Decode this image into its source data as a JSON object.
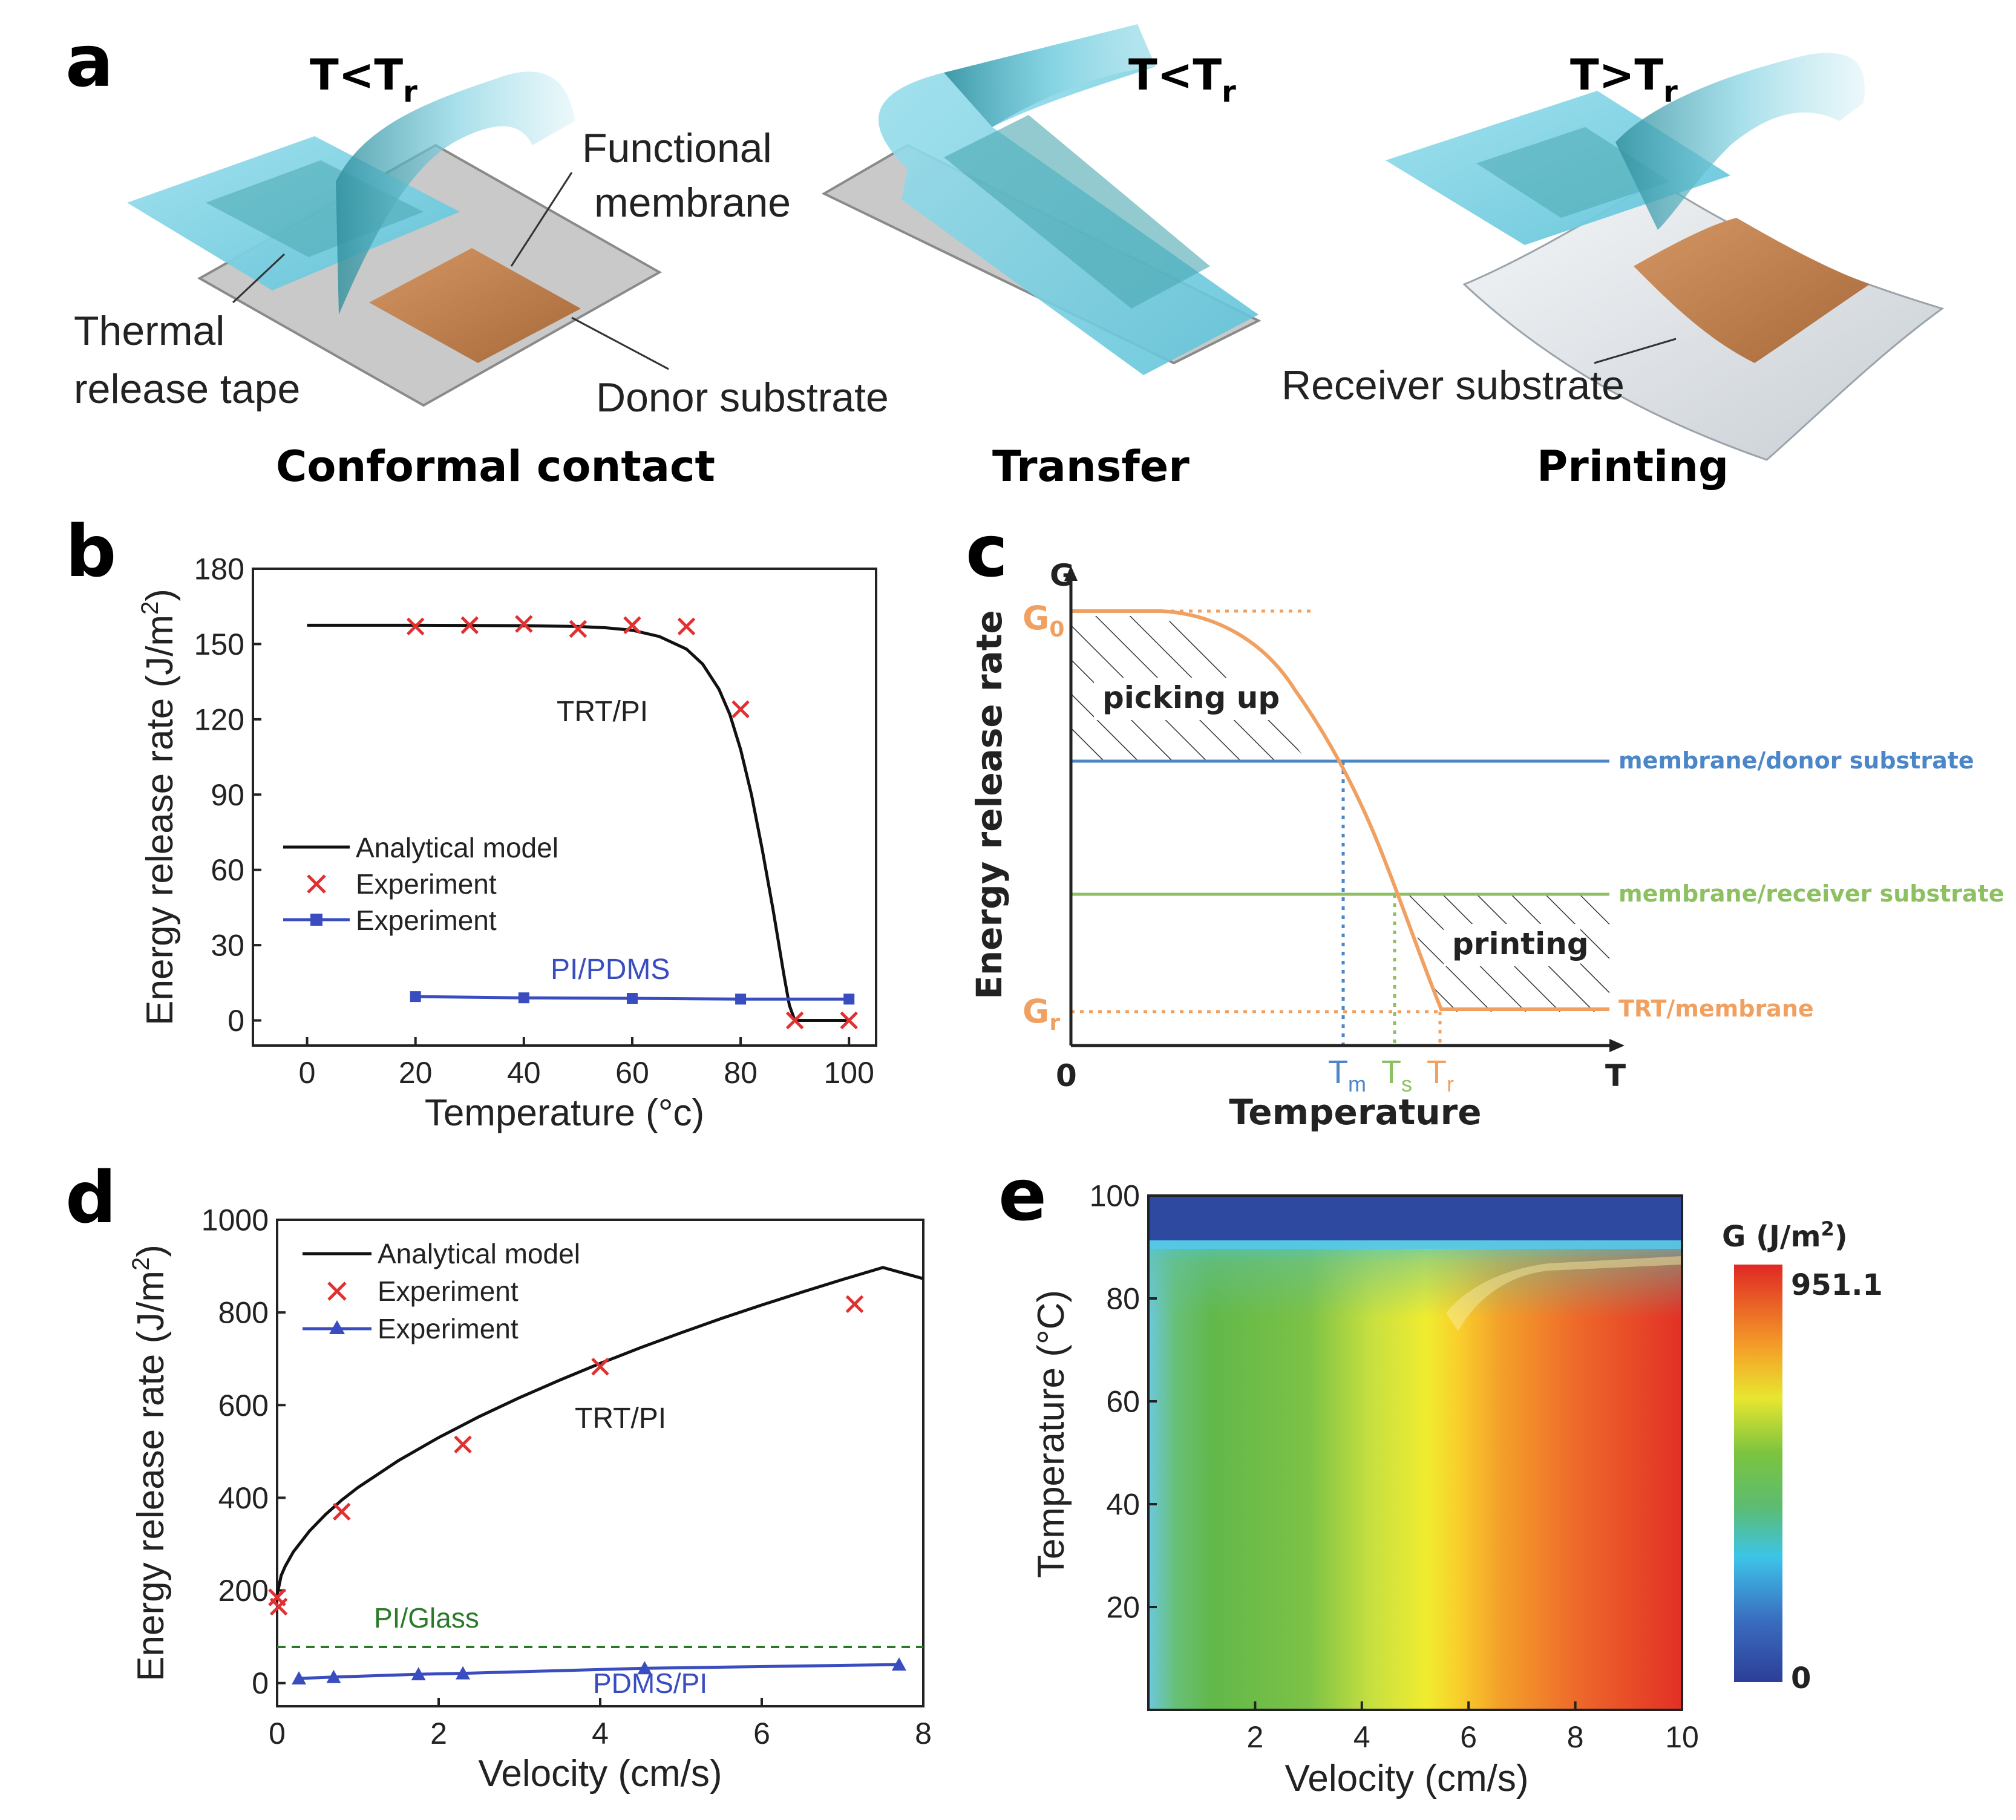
{
  "panel_labels": {
    "a": "a",
    "b": "b",
    "c": "c",
    "d": "d",
    "e": "e"
  },
  "panel_a": {
    "stages": [
      {
        "temp": "T<T",
        "temp_sub": "r",
        "caption": "Conformal contact"
      },
      {
        "temp": "T<T",
        "temp_sub": "r",
        "caption": "Transfer"
      },
      {
        "temp": "T>T",
        "temp_sub": "r",
        "caption": "Printing"
      }
    ],
    "labels": {
      "functional_1": "Functional",
      "functional_2": "membrane",
      "thermal_1": "Thermal",
      "thermal_2": "release tape",
      "donor": "Donor substrate",
      "receiver": "Receiver substrate"
    },
    "colors": {
      "tape": "#7fd3e6",
      "tape_dark": "#3a9aa8",
      "membrane": "#c08550",
      "substrate": "#cfcfcf"
    }
  },
  "chart_data": [
    {
      "panel": "b",
      "type": "line",
      "xlabel": "Temperature (°c)",
      "ylabel": "Energy release rate (J/m",
      "ylabel_sup": "2",
      "ylabel_close": ")",
      "xlim": [
        -10,
        105
      ],
      "ylim": [
        -10,
        180
      ],
      "xticks": [
        0,
        20,
        40,
        60,
        80,
        100
      ],
      "yticks": [
        0,
        30,
        60,
        90,
        120,
        150,
        180
      ],
      "legend": [
        "Analytical model",
        "Experiment",
        "Experiment"
      ],
      "annotations": [
        "TRT/PI",
        "PI/PDMS"
      ],
      "series": [
        {
          "name": "Analytical model (TRT/PI)",
          "x": [
            0,
            10,
            20,
            30,
            40,
            50,
            55,
            60,
            65,
            70,
            73,
            76,
            78,
            80,
            82,
            84,
            86,
            88,
            89,
            90,
            95,
            100
          ],
          "y": [
            157.5,
            157.5,
            157.5,
            157.4,
            157.3,
            157,
            156.5,
            155.5,
            153,
            148,
            142,
            132,
            122,
            108,
            90,
            68,
            44,
            18,
            6,
            0,
            0,
            0
          ]
        },
        {
          "name": "Experiment (TRT/PI)",
          "x": [
            20,
            30,
            40,
            50,
            60,
            70,
            80,
            90,
            100
          ],
          "y": [
            157,
            157.5,
            158,
            156,
            157.5,
            157,
            124,
            0,
            0
          ]
        },
        {
          "name": "Experiment (PI/PDMS)",
          "x": [
            20,
            40,
            60,
            80,
            100
          ],
          "y": [
            9.5,
            9,
            8.8,
            8.5,
            8.5
          ]
        }
      ]
    },
    {
      "panel": "c",
      "type": "line",
      "xlabel": "Temperature",
      "ylabel": "Energy release rate",
      "axis_labels": {
        "g": "G",
        "t": "T",
        "origin": "0",
        "g0": "G",
        "g0_sub": "0",
        "gr": "G",
        "gr_sub": "r",
        "tm": "T",
        "tm_sub": "m",
        "ts": "T",
        "ts_sub": "s",
        "tr": "T",
        "tr_sub": "r"
      },
      "regions": [
        "picking up",
        "printing"
      ],
      "lines": [
        "membrane/donor substrate",
        "membrane/receiver substrate",
        "TRT/membrane"
      ],
      "colors": {
        "curve": "#f0a060",
        "donor": "#4a86c8",
        "receiver": "#8cc060",
        "trt": "#f0a060"
      }
    },
    {
      "panel": "d",
      "type": "line",
      "xlabel": "Velocity (cm/s)",
      "ylabel": "Energy release rate (J/m",
      "ylabel_sup": "2",
      "ylabel_close": ")",
      "xlim": [
        0,
        8
      ],
      "ylim": [
        -50,
        1000
      ],
      "xticks": [
        0,
        2,
        4,
        6,
        8
      ],
      "yticks": [
        0,
        200,
        400,
        600,
        800,
        1000
      ],
      "legend": [
        "Analytical model",
        "Experiment",
        "Experiment"
      ],
      "annotations": [
        "TRT/PI",
        "PI/Glass",
        "PDMS/PI"
      ],
      "series": [
        {
          "name": "Analytical model (TRT/PI)",
          "x": [
            0,
            0.05,
            0.1,
            0.2,
            0.4,
            0.6,
            0.8,
            1,
            1.5,
            2,
            2.5,
            3,
            3.5,
            4,
            4.5,
            5,
            5.5,
            6,
            6.5,
            7,
            7.5,
            8
          ],
          "y": [
            190,
            232,
            252,
            283,
            328,
            364,
            395,
            422,
            480,
            530,
            575,
            616,
            654,
            690,
            724,
            756,
            787,
            816,
            844,
            871,
            897,
            873
          ]
        },
        {
          "name": "Experiment (TRT/PI)",
          "x": [
            0,
            0.02,
            0.8,
            2.3,
            4,
            7.15
          ],
          "y": [
            185,
            165,
            370,
            515,
            683,
            818
          ]
        },
        {
          "name": "PI/Glass",
          "x": [
            0,
            8
          ],
          "y": [
            78,
            78
          ]
        },
        {
          "name": "Experiment (PDMS/PI)",
          "x": [
            0.27,
            0.7,
            1.75,
            2.3,
            4.55,
            7.7
          ],
          "y": [
            10,
            13,
            19,
            21,
            32,
            40
          ]
        }
      ]
    },
    {
      "panel": "e",
      "type": "heatmap",
      "xlabel": "Velocity (cm/s)",
      "ylabel": "Temperature (°C)",
      "xlim": [
        0,
        10
      ],
      "ylim": [
        0,
        100
      ],
      "xticks": [
        2,
        4,
        6,
        8,
        10
      ],
      "yticks": [
        20,
        40,
        60,
        80,
        100
      ],
      "colorbar_title": "G (J/m",
      "colorbar_sup": "2",
      "colorbar_close": ")",
      "colorbar_max": "951.1",
      "colorbar_min": "0"
    }
  ]
}
